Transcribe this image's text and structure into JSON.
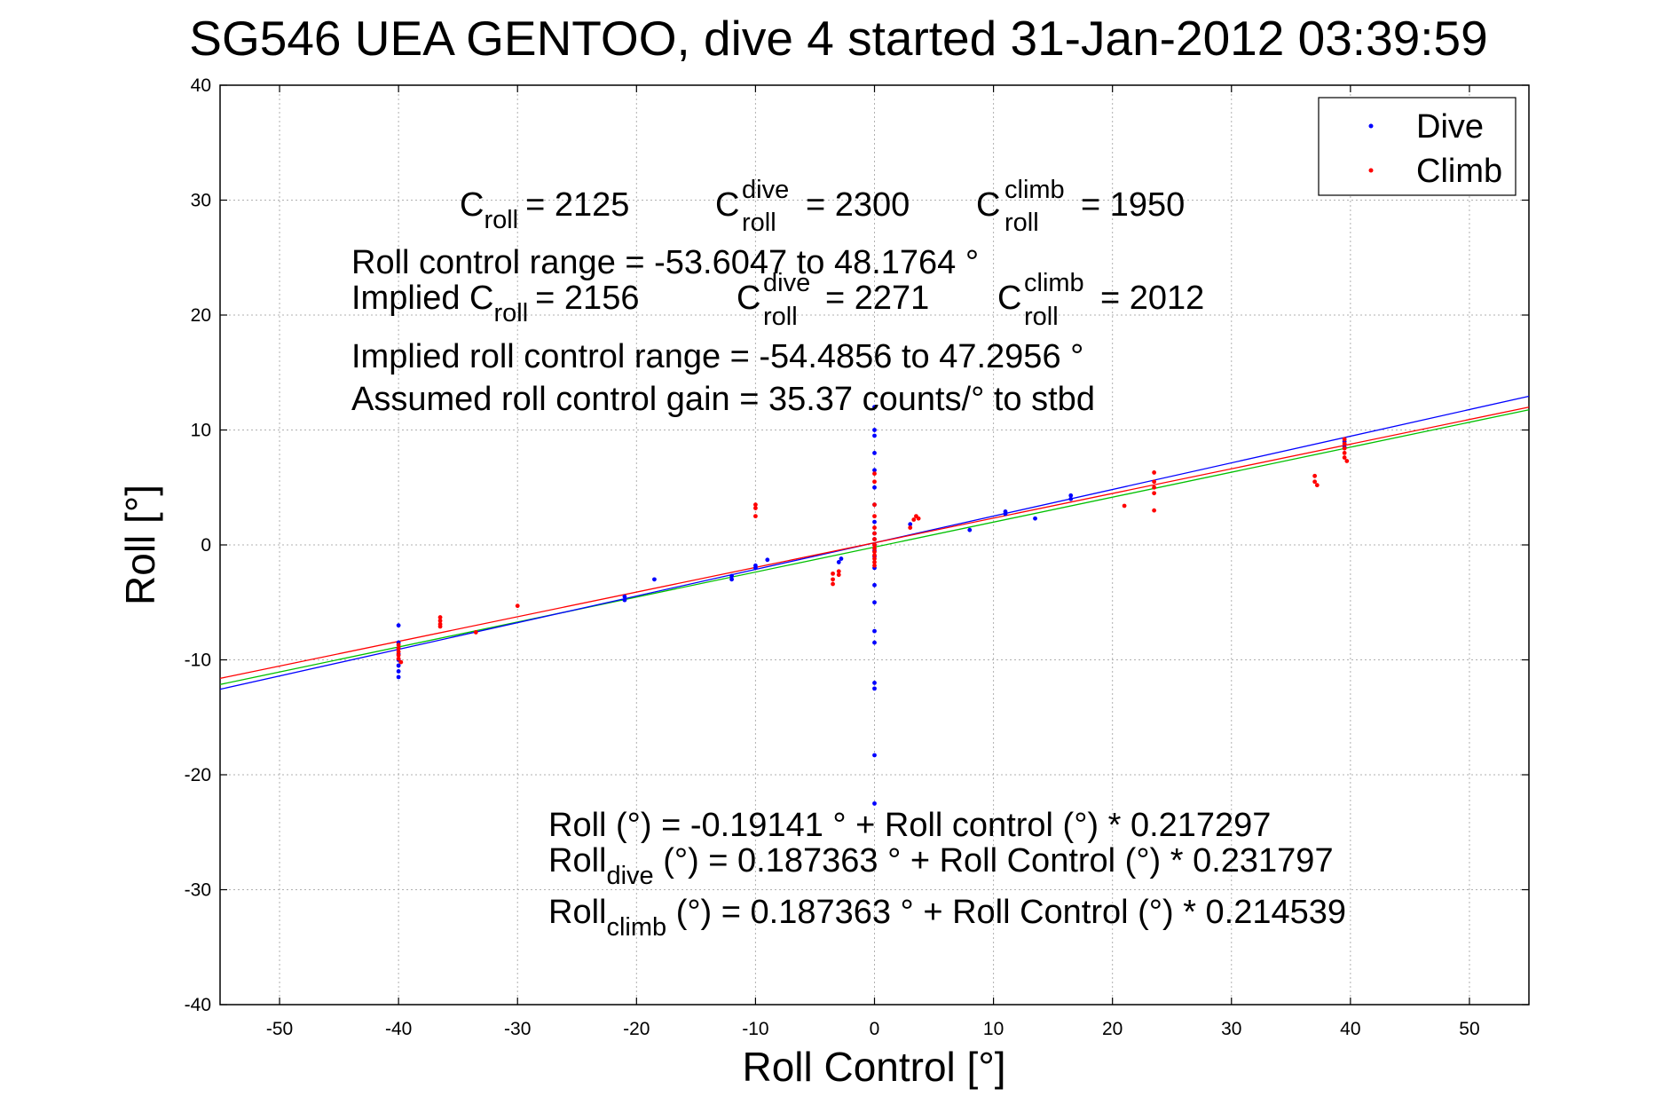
{
  "chart_data": {
    "type": "scatter",
    "title": "SG546 UEA GENTOO, dive 4 started 31-Jan-2012 03:39:59",
    "xlabel": "Roll Control [°]",
    "ylabel": "Roll [°]",
    "xlim": [
      -55,
      55
    ],
    "ylim": [
      -40,
      40
    ],
    "xticks": [
      -50,
      -40,
      -30,
      -20,
      -10,
      0,
      10,
      20,
      30,
      40,
      50
    ],
    "yticks": [
      -40,
      -30,
      -20,
      -10,
      0,
      10,
      20,
      30,
      40
    ],
    "xtick_labels": [
      "-50",
      "-40",
      "-30",
      "-20",
      "-10",
      "0",
      "10",
      "20",
      "30",
      "40",
      "50"
    ],
    "ytick_labels": [
      "-40",
      "-30",
      "-20",
      "-10",
      "0",
      "10",
      "20",
      "30",
      "40"
    ],
    "grid": true,
    "legend_position": "top-right",
    "legend": [
      "Dive",
      "Climb"
    ],
    "colors": {
      "dive": "#0000ff",
      "climb": "#ff0000",
      "fit_all": "#00c000"
    },
    "series": [
      {
        "name": "Dive",
        "color": "#0000ff",
        "points": [
          [
            -40,
            -7
          ],
          [
            -40,
            -8.5
          ],
          [
            -40,
            -9
          ],
          [
            -40,
            -9.5
          ],
          [
            -40,
            -10
          ],
          [
            -40,
            -10.5
          ],
          [
            -40,
            -11
          ],
          [
            -40,
            -11.5
          ],
          [
            -21,
            -4.5
          ],
          [
            -21,
            -4.8
          ],
          [
            -18.5,
            -3
          ],
          [
            -12,
            -2.7
          ],
          [
            -12,
            -3
          ],
          [
            -10,
            -1.8
          ],
          [
            -10,
            -2
          ],
          [
            -9,
            -1.3
          ],
          [
            -3,
            -1.5
          ],
          [
            -2.8,
            -1.2
          ],
          [
            0,
            12
          ],
          [
            0,
            10
          ],
          [
            0,
            9.5
          ],
          [
            0,
            8
          ],
          [
            0,
            6.5
          ],
          [
            0,
            5
          ],
          [
            0,
            3.5
          ],
          [
            0,
            2
          ],
          [
            0,
            1
          ],
          [
            0,
            0.5
          ],
          [
            0,
            0
          ],
          [
            0,
            -0.5
          ],
          [
            0,
            -1
          ],
          [
            0,
            -2
          ],
          [
            0,
            -3.5
          ],
          [
            0,
            -5
          ],
          [
            0,
            -7.5
          ],
          [
            0,
            -8.5
          ],
          [
            0,
            -12
          ],
          [
            0,
            -12.5
          ],
          [
            0,
            -18.3
          ],
          [
            0,
            -22.5
          ],
          [
            3,
            1.8
          ],
          [
            8,
            1.3
          ],
          [
            11,
            2.7
          ],
          [
            11,
            2.9
          ],
          [
            13.5,
            2.3
          ],
          [
            16.5,
            4
          ],
          [
            16.5,
            4.3
          ],
          [
            39.5,
            9
          ],
          [
            39.5,
            8.5
          ]
        ]
      },
      {
        "name": "Climb",
        "color": "#ff0000",
        "points": [
          [
            -40,
            -8.7
          ],
          [
            -40,
            -9
          ],
          [
            -40,
            -9.3
          ],
          [
            -40,
            -9.6
          ],
          [
            -40,
            -9.9
          ],
          [
            -39.8,
            -10.2
          ],
          [
            -36.5,
            -6.3
          ],
          [
            -36.5,
            -6.6
          ],
          [
            -36.5,
            -6.9
          ],
          [
            -36.5,
            -7.1
          ],
          [
            -33.5,
            -7.6
          ],
          [
            -30,
            -5.3
          ],
          [
            -10,
            3.5
          ],
          [
            -10,
            3.2
          ],
          [
            -10,
            2.5
          ],
          [
            -3.5,
            -2.5
          ],
          [
            -3.5,
            -3
          ],
          [
            -3.5,
            -3.4
          ],
          [
            -3,
            -2.3
          ],
          [
            -3,
            -2.6
          ],
          [
            0,
            6.2
          ],
          [
            0,
            5.5
          ],
          [
            0,
            3.5
          ],
          [
            0,
            2.5
          ],
          [
            0,
            1.5
          ],
          [
            0,
            1
          ],
          [
            0,
            0.5
          ],
          [
            0,
            0
          ],
          [
            0,
            -0.3
          ],
          [
            0,
            -0.6
          ],
          [
            0,
            -0.9
          ],
          [
            0,
            -1.2
          ],
          [
            0,
            -1.5
          ],
          [
            0,
            -1.8
          ],
          [
            3,
            1.5
          ],
          [
            3.3,
            2.2
          ],
          [
            3.5,
            2.5
          ],
          [
            3.7,
            2.3
          ],
          [
            21,
            3.4
          ],
          [
            23.5,
            6.3
          ],
          [
            23.5,
            5.5
          ],
          [
            23.5,
            5
          ],
          [
            23.5,
            4.5
          ],
          [
            23.5,
            3
          ],
          [
            37,
            6
          ],
          [
            37,
            5.5
          ],
          [
            37.2,
            5.2
          ],
          [
            39.5,
            9.2
          ],
          [
            39.5,
            8.8
          ],
          [
            39.5,
            8.4
          ],
          [
            39.5,
            8
          ],
          [
            39.5,
            7.6
          ],
          [
            39.7,
            7.3
          ]
        ]
      }
    ],
    "fit_lines": [
      {
        "name": "fit all",
        "color": "#00c000",
        "intercept": -0.19141,
        "slope": 0.217297
      },
      {
        "name": "fit dive",
        "color": "#0000ff",
        "intercept": 0.187363,
        "slope": 0.231797
      },
      {
        "name": "fit climb",
        "color": "#ff0000",
        "intercept": 0.187363,
        "slope": 0.214539
      }
    ],
    "annotations": {
      "c_roll": "C",
      "c_roll_sub": "roll",
      "c_roll_val": "= 2125",
      "c_dive": "C",
      "c_dive_sup": "dive",
      "c_dive_sub": "roll",
      "c_dive_val": "= 2300",
      "c_climb": "C",
      "c_climb_sup": "climb",
      "c_climb_sub": "roll",
      "c_climb_val": "= 1950",
      "range": "Roll control range = -53.6047 to 48.1764 °",
      "implied_prefix": "Implied C",
      "implied_sub": "roll",
      "implied_val": "= 2156",
      "implied_dive": "C",
      "implied_dive_sup": "dive",
      "implied_dive_sub": "roll",
      "implied_dive_val": "= 2271",
      "implied_climb": "C",
      "implied_climb_sup": "climb",
      "implied_climb_sub": "roll",
      "implied_climb_val": "= 2012",
      "implied_range": "Implied roll control range = -54.4856 to 47.2956 °",
      "gain": "Assumed roll control gain = 35.37 counts/° to stbd",
      "eq_all": "Roll (°) = -0.19141 ° + Roll control (°) * 0.217297",
      "eq_dive_a": "Roll",
      "eq_dive_sub": "dive",
      "eq_dive_b": " (°) = 0.187363 ° + Roll Control (°) * 0.231797",
      "eq_climb_a": "Roll",
      "eq_climb_sub": "climb",
      "eq_climb_b": " (°) = 0.187363 ° + Roll Control (°) * 0.214539"
    }
  }
}
